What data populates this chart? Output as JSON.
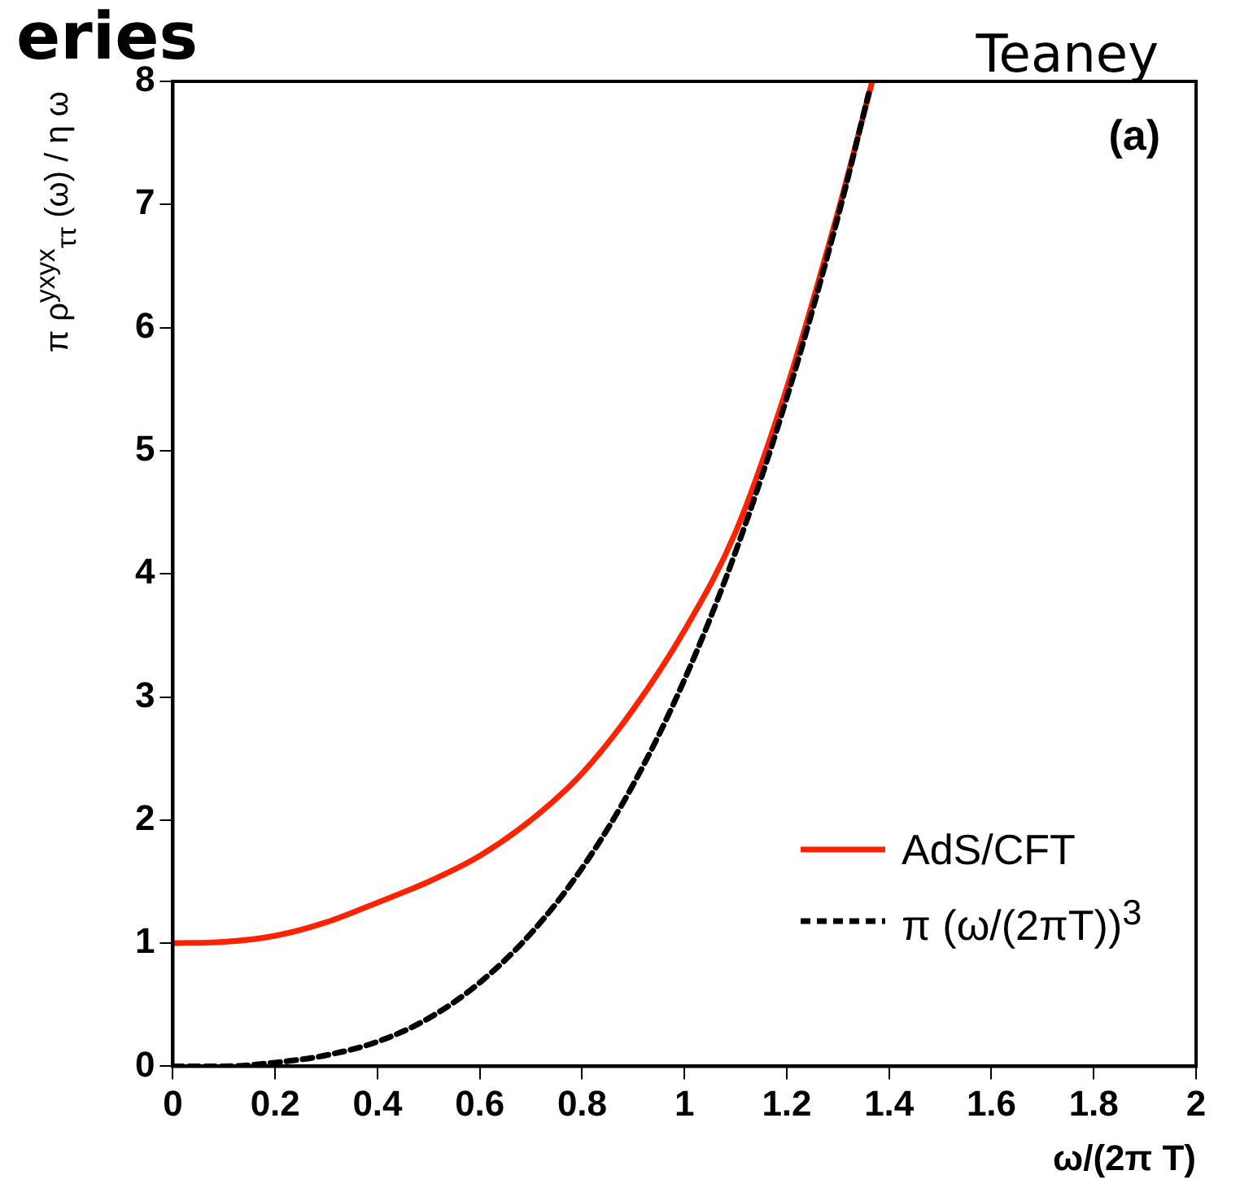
{
  "chart_data": {
    "type": "line",
    "title": "eries",
    "subtitle": "Teaney",
    "xlabel": "ω/(2π T)",
    "ylabel": "π ρ$^{yxyx}$$_{ττ}$ (ω) / η ω",
    "annotations": [
      "(a)"
    ],
    "xlim": [
      0,
      2
    ],
    "xticks": [
      0,
      0.2,
      0.4,
      0.6,
      0.8,
      1,
      1.2,
      1.4,
      1.6,
      1.8,
      2
    ],
    "ylim": [
      0,
      8
    ],
    "yticks": [
      0,
      1,
      2,
      3,
      4,
      5,
      6,
      7,
      8
    ],
    "grid": false,
    "legend": "bottom right",
    "marker": "none",
    "series": [
      {
        "name": "AdS/CFT",
        "color": "#ff2200",
        "line_style": "solid",
        "x": [
          0,
          0.1,
          0.2,
          0.3,
          0.4,
          0.5,
          0.6,
          0.7,
          0.8,
          0.9,
          1,
          1.1,
          1.2,
          1.3,
          1.367
        ],
        "values": [
          1,
          1.01,
          1.06,
          1.17,
          1.33,
          1.5,
          1.71,
          2.0,
          2.38,
          2.9,
          3.54,
          4.34,
          5.51,
          6.94,
          8
        ]
      },
      {
        "name": "π (ω/(2πT))$^{3}$",
        "color": "#000000",
        "line_style": "dashed",
        "x": [
          0,
          0.1,
          0.2,
          0.3,
          0.4,
          0.5,
          0.6,
          0.7,
          0.8,
          0.9,
          1,
          1.1,
          1.2,
          1.3,
          1.36
        ],
        "values": [
          0,
          0,
          0.03,
          0.09,
          0.2,
          0.39,
          0.68,
          1.08,
          1.61,
          2.29,
          3.14,
          4.18,
          5.43,
          6.9,
          7.9
        ]
      }
    ]
  }
}
